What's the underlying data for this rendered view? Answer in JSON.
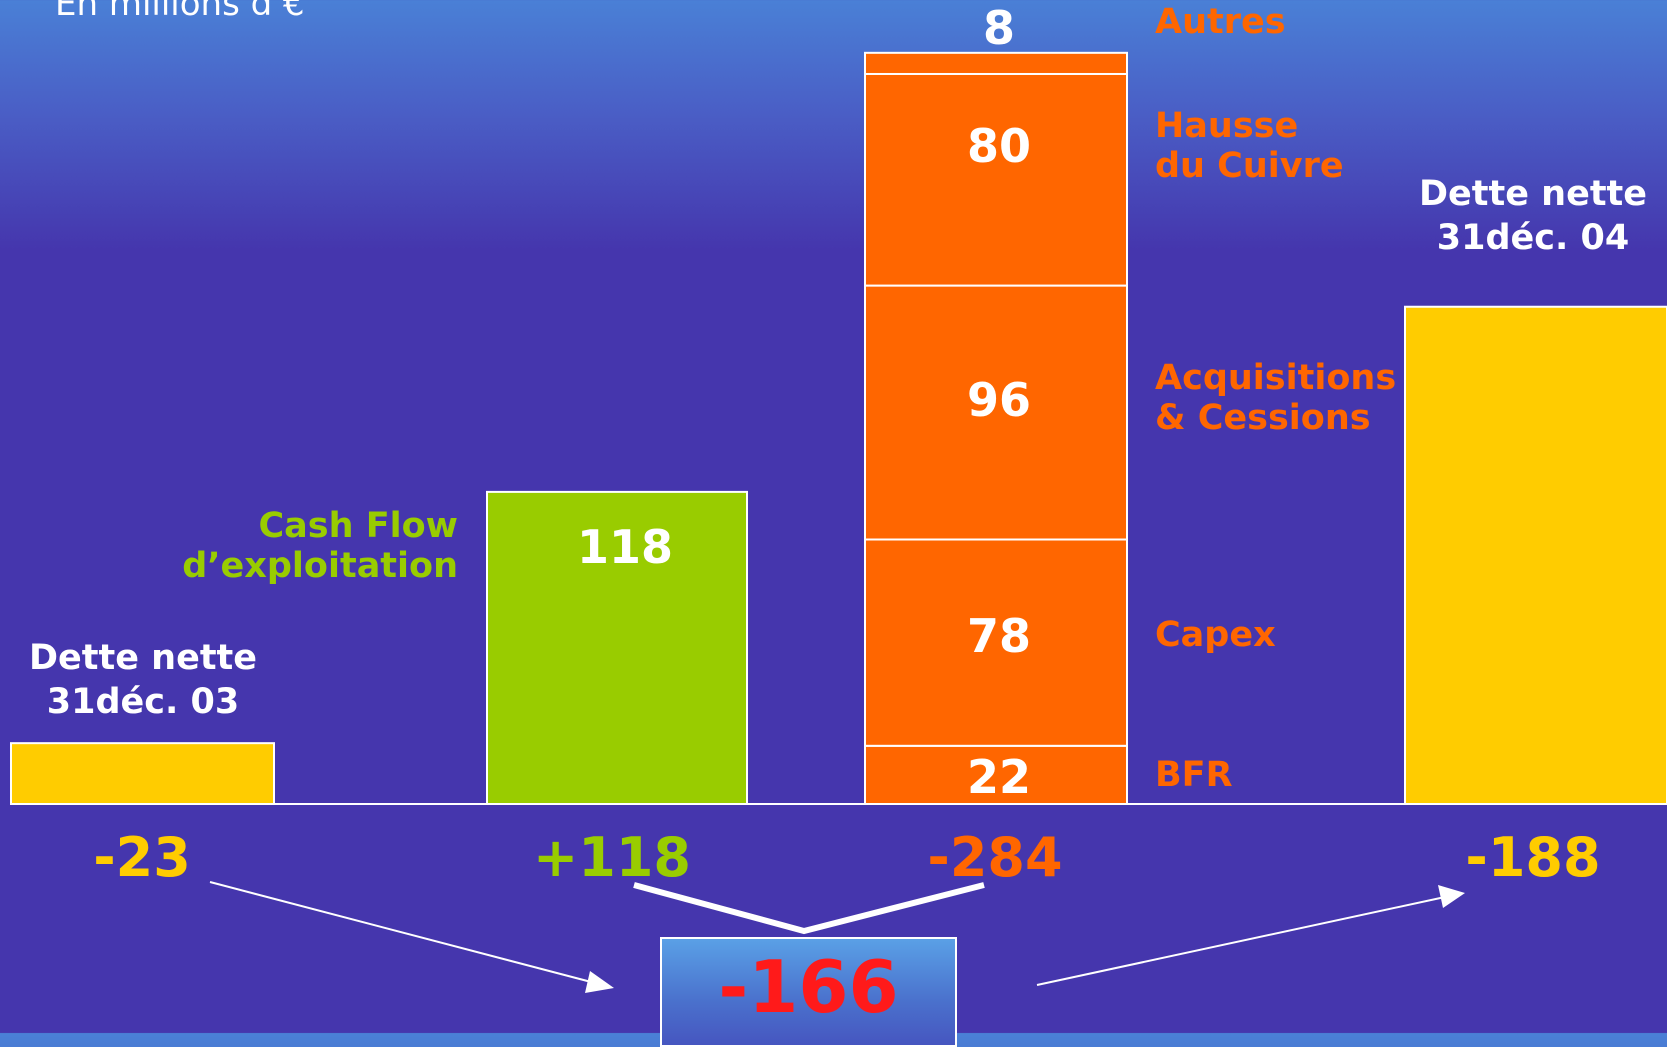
{
  "unit_label": "En millions d’€",
  "colors": {
    "debt": "#ffcc00",
    "cash_flow": "#99cc00",
    "uses": "#ff6600",
    "result": "#ff1a1a",
    "text": "#ffffff"
  },
  "chart_data": {
    "type": "bar",
    "subtype": "waterfall",
    "title": "",
    "xlabel": "",
    "ylabel": "En millions d’€",
    "grid": false,
    "legend": "none",
    "start": {
      "label_lines": [
        "Dette nette",
        "31déc. 03"
      ],
      "value": 23,
      "total_label": "-23"
    },
    "cash_flow": {
      "label_lines": [
        "Cash Flow",
        "d’exploitation"
      ],
      "value": 118,
      "value_label": "118",
      "total_label": "+118"
    },
    "uses": {
      "segments": [
        {
          "name": "BFR",
          "name_lines": [
            "BFR"
          ],
          "value": 22,
          "value_label": "22"
        },
        {
          "name": "Capex",
          "name_lines": [
            "Capex"
          ],
          "value": 78,
          "value_label": "78"
        },
        {
          "name": "Acquisitions & Cessions",
          "name_lines": [
            "Acquisitions",
            "& Cessions"
          ],
          "value": 96,
          "value_label": "96"
        },
        {
          "name": "Hausse du Cuivre",
          "name_lines": [
            "Hausse",
            "du Cuivre"
          ],
          "value": 80,
          "value_label": "80"
        },
        {
          "name": "Autres",
          "name_lines": [
            "Autres"
          ],
          "value": 8,
          "value_label": "8"
        }
      ],
      "total_label": "-284"
    },
    "end": {
      "label_lines": [
        "Dette nette",
        "31déc. 04"
      ],
      "value": 188,
      "total_label": "-188"
    },
    "net_change": {
      "value": -166,
      "label": "-166"
    }
  }
}
